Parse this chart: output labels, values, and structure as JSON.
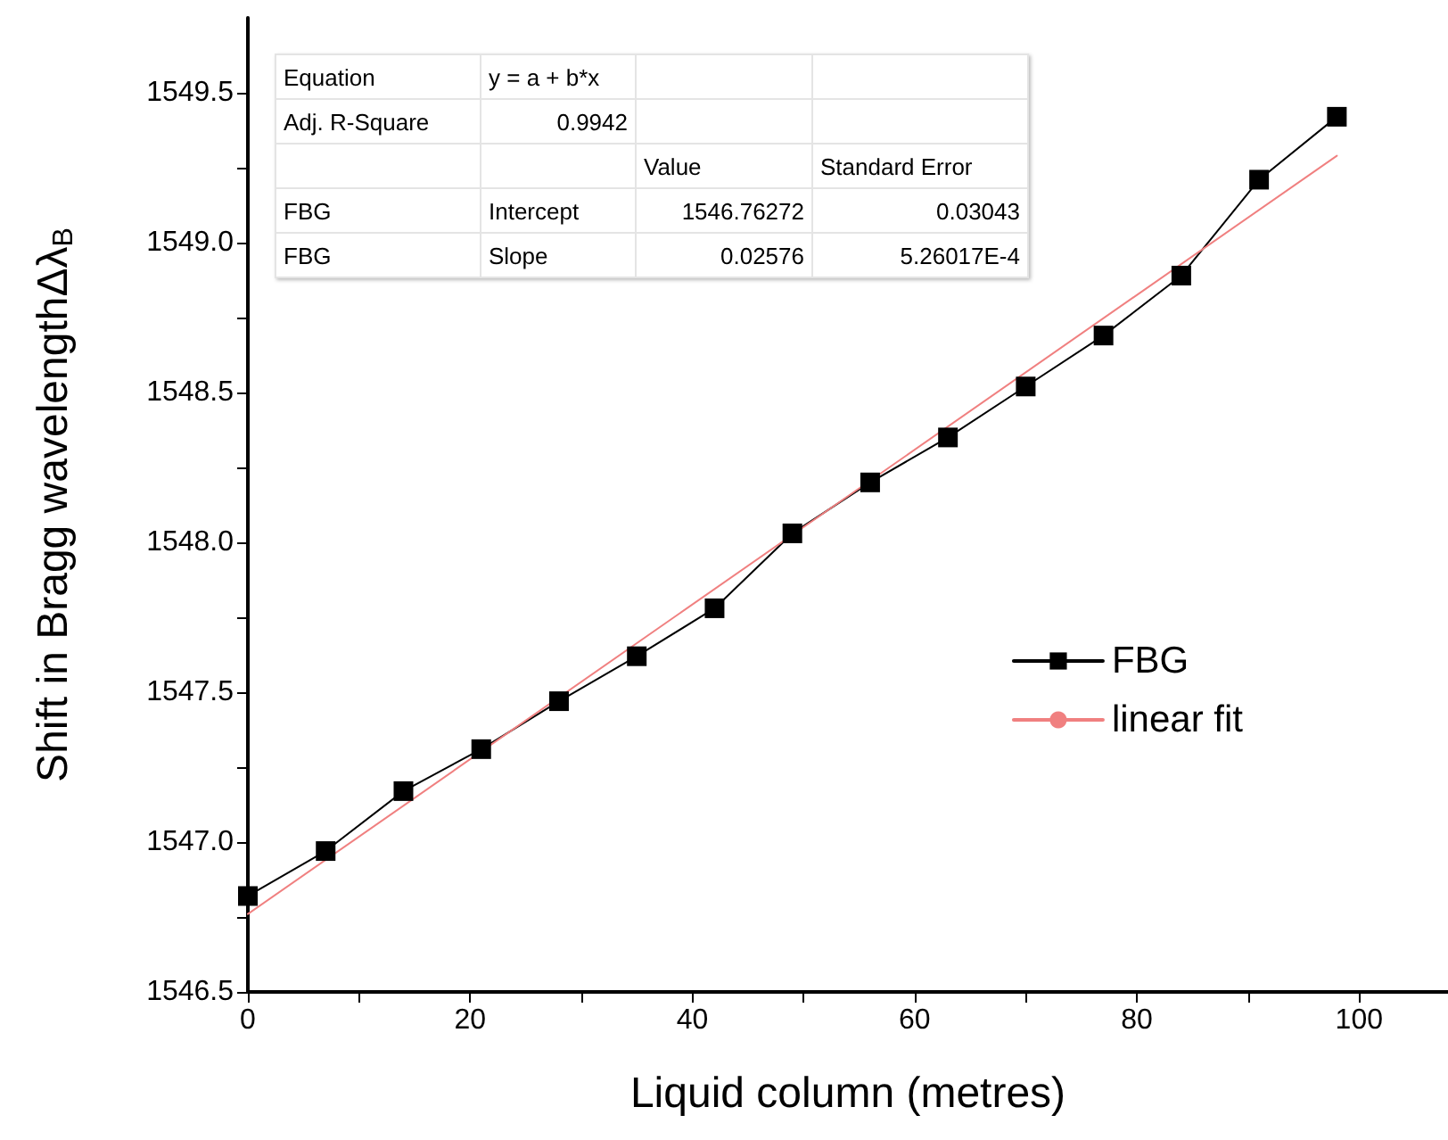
{
  "chart_data": {
    "type": "line",
    "xlabel": "Liquid column (metres)",
    "ylabel": "Shift in Bragg wavelengthΔλ$_{B}$",
    "x": [
      0,
      7,
      14,
      21,
      28,
      35,
      42,
      49,
      56,
      63,
      70,
      77,
      84,
      91,
      98
    ],
    "series": [
      {
        "name": "FBG",
        "color": "#000000",
        "marker": "square",
        "line_style": "solid",
        "values": [
          1546.82,
          1546.97,
          1547.17,
          1547.31,
          1547.47,
          1547.62,
          1547.78,
          1548.03,
          1548.2,
          1548.35,
          1548.52,
          1548.69,
          1548.89,
          1549.21,
          1549.42
        ]
      },
      {
        "name": "linear fit",
        "type": "line",
        "color": "#f08080",
        "marker": "none",
        "line_style": "solid",
        "x": [
          0,
          98
        ],
        "values": [
          1546.76,
          1549.29
        ]
      }
    ],
    "xlim": [
      0,
      108
    ],
    "xticks": [
      0,
      {
        "value": 10,
        "label": null
      },
      20,
      {
        "value": 30,
        "label": null
      },
      40,
      {
        "value": 50,
        "label": null
      },
      60,
      {
        "value": 70,
        "label": null
      },
      80,
      {
        "value": 90,
        "label": null
      },
      100
    ],
    "ylim": [
      1546.5,
      1549.75
    ],
    "yticks": [
      {
        "value": 1546.5,
        "label": "1546.5"
      },
      {
        "value": 1546.75,
        "label": null
      },
      {
        "value": 1547,
        "label": "1547.0"
      },
      {
        "value": 1547.25,
        "label": null
      },
      {
        "value": 1547.5,
        "label": "1547.5"
      },
      {
        "value": 1547.75,
        "label": null
      },
      {
        "value": 1548,
        "label": "1548.0"
      },
      {
        "value": 1548.25,
        "label": null
      },
      {
        "value": 1548.5,
        "label": "1548.5"
      },
      {
        "value": 1548.75,
        "label": null
      },
      {
        "value": 1549,
        "label": "1549.0"
      },
      {
        "value": 1549.25,
        "label": null
      },
      {
        "value": 1549.5,
        "label": "1549.5"
      }
    ],
    "grid": false,
    "legend": "right",
    "annotations": [
      "Equation",
      "y = a + b*x",
      "Adj. R-Square",
      "0.9942",
      "Value",
      "Standard Error",
      "FBG",
      "Intercept",
      "1546.76272",
      "0.03043",
      "FBG",
      "Slope",
      "0.02576",
      "5.26017E-4"
    ]
  }
}
